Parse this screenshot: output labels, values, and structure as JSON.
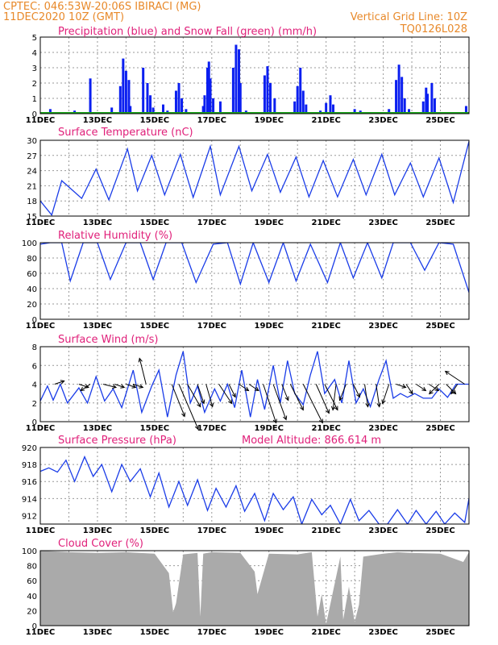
{
  "header": {
    "line1": "CPTEC:   046:53W-20:06S   IBIRACI (MG)",
    "line2": "11DEC2020 10Z (GMT)",
    "grid_note": "Vertical Grid Line: 10Z",
    "run_code": "TQ0126L028"
  },
  "x_ticks": [
    "11DEC",
    "13DEC",
    "15DEC",
    "17DEC",
    "19DEC",
    "21DEC",
    "23DEC",
    "25DEC"
  ],
  "colors": {
    "title": "#e0207a",
    "header": "#e8892a",
    "line": "#1a3ce8",
    "precip": "#0b1ff0",
    "snow": "#19a519",
    "cloud": "#aaaaaa"
  },
  "chart_data": [
    {
      "type": "bar",
      "title": "Precipitation (blue) and Snow Fall (green) (mm/h)",
      "ylim": [
        0,
        5
      ],
      "yticks": [
        0,
        1,
        2,
        3,
        4,
        5
      ],
      "x_range_days": [
        0,
        15
      ],
      "series": [
        {
          "name": "Precipitation",
          "points": [
            [
              0.35,
              0.3
            ],
            [
              1.2,
              0.2
            ],
            [
              1.75,
              2.3
            ],
            [
              2.5,
              0.4
            ],
            [
              2.8,
              1.8
            ],
            [
              2.9,
              3.6
            ],
            [
              3.0,
              2.8
            ],
            [
              3.1,
              2.2
            ],
            [
              3.15,
              0.5
            ],
            [
              3.6,
              3.0
            ],
            [
              3.75,
              2.0
            ],
            [
              3.85,
              1.2
            ],
            [
              3.95,
              0.4
            ],
            [
              4.3,
              0.6
            ],
            [
              4.45,
              0.2
            ],
            [
              4.75,
              1.5
            ],
            [
              4.85,
              2.0
            ],
            [
              4.95,
              1.0
            ],
            [
              5.1,
              0.3
            ],
            [
              5.7,
              0.5
            ],
            [
              5.75,
              1.2
            ],
            [
              5.85,
              3.0
            ],
            [
              5.9,
              3.4
            ],
            [
              5.95,
              2.3
            ],
            [
              6.05,
              1.0
            ],
            [
              6.3,
              0.8
            ],
            [
              6.75,
              3.0
            ],
            [
              6.85,
              4.5
            ],
            [
              6.95,
              4.2
            ],
            [
              7.0,
              2.0
            ],
            [
              7.2,
              0.2
            ],
            [
              7.85,
              2.5
            ],
            [
              7.95,
              3.1
            ],
            [
              8.05,
              2.0
            ],
            [
              8.2,
              1.0
            ],
            [
              8.9,
              0.8
            ],
            [
              9.0,
              1.8
            ],
            [
              9.1,
              3.0
            ],
            [
              9.2,
              1.5
            ],
            [
              9.3,
              0.6
            ],
            [
              9.8,
              0.2
            ],
            [
              10.0,
              0.7
            ],
            [
              10.15,
              1.2
            ],
            [
              10.25,
              0.6
            ],
            [
              11.0,
              0.3
            ],
            [
              11.2,
              0.2
            ],
            [
              12.2,
              0.3
            ],
            [
              12.45,
              2.2
            ],
            [
              12.55,
              3.2
            ],
            [
              12.65,
              2.4
            ],
            [
              12.75,
              1.0
            ],
            [
              12.9,
              0.3
            ],
            [
              13.4,
              0.8
            ],
            [
              13.5,
              1.7
            ],
            [
              13.55,
              1.3
            ],
            [
              13.7,
              2.0
            ],
            [
              13.8,
              1.0
            ],
            [
              14.9,
              0.5
            ]
          ]
        },
        {
          "name": "Snow Fall",
          "points": []
        }
      ]
    },
    {
      "type": "line",
      "title": "Surface Temperature (nC)",
      "ylim": [
        15,
        30
      ],
      "yticks": [
        15,
        18,
        21,
        24,
        27,
        30
      ],
      "x": [
        0,
        0.4,
        0.75,
        1.45,
        1.95,
        2.4,
        3.05,
        3.4,
        3.9,
        4.35,
        4.9,
        5.35,
        5.95,
        6.3,
        6.95,
        7.4,
        7.95,
        8.4,
        8.95,
        9.4,
        9.9,
        10.4,
        10.95,
        11.4,
        11.95,
        12.4,
        12.95,
        13.4,
        13.95,
        14.45,
        15
      ],
      "values": [
        18,
        15.2,
        22,
        18.5,
        24.3,
        18.2,
        28.3,
        20,
        27,
        19.2,
        27.2,
        18.7,
        28.8,
        19.2,
        28.8,
        20,
        27.2,
        19.7,
        26.7,
        18.8,
        26,
        18.8,
        26.2,
        19.2,
        27.2,
        19.2,
        25.5,
        18.8,
        26.5,
        17.7,
        29.8
      ]
    },
    {
      "type": "line",
      "title": "Relative Humidity (%)",
      "ylim": [
        0,
        100
      ],
      "yticks": [
        0,
        20,
        40,
        60,
        80,
        100
      ],
      "x": [
        0,
        0.35,
        0.75,
        1.05,
        1.5,
        2.0,
        2.45,
        3.0,
        3.5,
        3.95,
        4.4,
        4.95,
        5.45,
        6.05,
        6.55,
        7.0,
        7.45,
        8.0,
        8.5,
        8.95,
        9.45,
        10.05,
        10.5,
        10.95,
        11.45,
        11.95,
        12.35,
        12.95,
        13.45,
        13.95,
        14.45,
        15
      ],
      "values": [
        98,
        100,
        100,
        50,
        100,
        100,
        52,
        100,
        100,
        52,
        100,
        100,
        48,
        98,
        100,
        46,
        100,
        48,
        100,
        50,
        98,
        48,
        100,
        54,
        100,
        54,
        100,
        100,
        64,
        100,
        98,
        35
      ]
    },
    {
      "type": "line",
      "title": "Surface Wind (m/s)",
      "ylim": [
        0,
        8
      ],
      "yticks": [
        0,
        2,
        4,
        6,
        8
      ],
      "x": [
        0,
        0.25,
        0.45,
        0.7,
        0.95,
        1.35,
        1.65,
        1.95,
        2.25,
        2.55,
        2.85,
        3.25,
        3.55,
        3.9,
        4.15,
        4.45,
        4.75,
        5.0,
        5.25,
        5.5,
        5.75,
        6.1,
        6.3,
        6.55,
        6.8,
        7.05,
        7.35,
        7.6,
        7.85,
        8.15,
        8.4,
        8.65,
        8.9,
        9.2,
        9.45,
        9.7,
        9.95,
        10.3,
        10.55,
        10.8,
        11.05,
        11.3,
        11.55,
        11.85,
        12.1,
        12.35,
        12.6,
        12.85,
        13.1,
        13.4,
        13.7,
        13.95,
        14.25,
        14.55,
        15
      ],
      "values": [
        2.2,
        3.8,
        2.3,
        4.0,
        2.0,
        3.6,
        2.0,
        4.8,
        2.2,
        3.5,
        1.5,
        5.5,
        1.0,
        3.8,
        5.5,
        0.5,
        5.0,
        7.5,
        2.0,
        3.8,
        1.0,
        3.5,
        2.2,
        4.0,
        1.5,
        5.5,
        0.5,
        4.5,
        1.3,
        6.0,
        2.0,
        6.5,
        3.0,
        1.8,
        5.0,
        7.5,
        3.0,
        4.5,
        2.0,
        6.5,
        2.0,
        3.5,
        1.6,
        4.5,
        6.5,
        2.5,
        3.0,
        2.6,
        3.0,
        2.5,
        2.5,
        3.5,
        2.6,
        4.0,
        4.0
      ],
      "vectors": [
        [
          0.5,
          0.15,
          -0.05
        ],
        [
          1.35,
          0.15,
          0.05
        ],
        [
          1.75,
          -0.15,
          0.1
        ],
        [
          2.2,
          0.2,
          0.05
        ],
        [
          2.6,
          0.15,
          0.05
        ],
        [
          3.0,
          0.15,
          0.05
        ],
        [
          3.25,
          0.15,
          0.05
        ],
        [
          3.7,
          -0.1,
          -0.4
        ],
        [
          4.6,
          0.2,
          0.5
        ],
        [
          4.85,
          0.3,
          0.7
        ],
        [
          5.15,
          0.2,
          0.35
        ],
        [
          5.5,
          0.1,
          0.3
        ],
        [
          5.8,
          0.1,
          0.35
        ],
        [
          6.25,
          0.2,
          0.3
        ],
        [
          6.6,
          0.1,
          0.2
        ],
        [
          6.95,
          0.15,
          0.1
        ],
        [
          7.3,
          0.15,
          0.1
        ],
        [
          7.8,
          0.2,
          0.6
        ],
        [
          8.15,
          0.2,
          0.55
        ],
        [
          8.45,
          0.1,
          0.25
        ],
        [
          8.75,
          0.2,
          0.4
        ],
        [
          9.2,
          0.3,
          0.6
        ],
        [
          9.65,
          0.2,
          0.45
        ],
        [
          9.95,
          0.2,
          0.4
        ],
        [
          10.35,
          -0.05,
          0.4
        ],
        [
          10.7,
          -0.1,
          0.25
        ],
        [
          10.95,
          0.1,
          0.2
        ],
        [
          11.35,
          0.05,
          0.35
        ],
        [
          11.75,
          0.05,
          0.35
        ],
        [
          12.2,
          -0.1,
          0.3
        ],
        [
          12.45,
          0.15,
          0.05
        ],
        [
          12.8,
          0.1,
          0.15
        ],
        [
          13.15,
          0.15,
          0.1
        ],
        [
          13.6,
          0.15,
          0.1
        ],
        [
          13.95,
          -0.15,
          0.15
        ],
        [
          14.2,
          0.15,
          0.15
        ],
        [
          14.6,
          -0.1,
          0.15
        ],
        [
          14.85,
          -0.3,
          -0.2
        ]
      ]
    },
    {
      "type": "line",
      "title": "Surface Pressure (hPa)",
      "annotation": "Model Altitude: 866.614 m",
      "ylim": [
        911,
        920
      ],
      "yticks": [
        912,
        914,
        916,
        918,
        920
      ],
      "x": [
        0,
        0.3,
        0.6,
        0.9,
        1.2,
        1.55,
        1.85,
        2.15,
        2.5,
        2.85,
        3.15,
        3.5,
        3.85,
        4.15,
        4.5,
        4.85,
        5.15,
        5.5,
        5.85,
        6.15,
        6.5,
        6.85,
        7.15,
        7.5,
        7.85,
        8.15,
        8.5,
        8.85,
        9.15,
        9.5,
        9.85,
        10.15,
        10.5,
        10.85,
        11.15,
        11.5,
        11.85,
        12.15,
        12.5,
        12.85,
        13.15,
        13.5,
        13.85,
        14.15,
        14.5,
        14.85,
        15
      ],
      "values": [
        917.2,
        917.6,
        917.1,
        918.5,
        916.0,
        918.9,
        916.6,
        918.0,
        914.8,
        918.0,
        916.0,
        917.5,
        914.2,
        917.0,
        913.0,
        916.0,
        913.2,
        916.2,
        912.6,
        915.2,
        913.0,
        915.5,
        912.5,
        914.6,
        911.4,
        914.6,
        912.7,
        914.2,
        911.0,
        913.9,
        912.1,
        913.2,
        911.0,
        913.9,
        911.4,
        912.6,
        911.0,
        911.0,
        912.7,
        911.0,
        912.6,
        911.0,
        912.5,
        911.0,
        912.3,
        911.2,
        914.0
      ]
    },
    {
      "type": "area",
      "title": "Cloud Cover (%)",
      "ylim": [
        0,
        100
      ],
      "yticks": [
        0,
        20,
        40,
        60,
        80,
        100
      ],
      "x": [
        0,
        1,
        2,
        3,
        4,
        4.5,
        4.65,
        4.75,
        5.0,
        5.5,
        5.6,
        5.7,
        6.0,
        7.0,
        7.5,
        7.6,
        8.0,
        9.0,
        9.5,
        9.7,
        9.85,
        10.0,
        10.5,
        10.6,
        10.8,
        11.0,
        11.15,
        11.3,
        12.0,
        12.5,
        13.0,
        14.0,
        14.8,
        15
      ],
      "values": [
        100,
        98,
        97,
        98,
        96,
        70,
        18,
        30,
        95,
        97,
        12,
        96,
        98,
        97,
        72,
        42,
        96,
        95,
        98,
        12,
        42,
        2,
        92,
        8,
        52,
        5,
        28,
        92,
        96,
        98,
        97,
        96,
        85,
        98
      ]
    }
  ]
}
